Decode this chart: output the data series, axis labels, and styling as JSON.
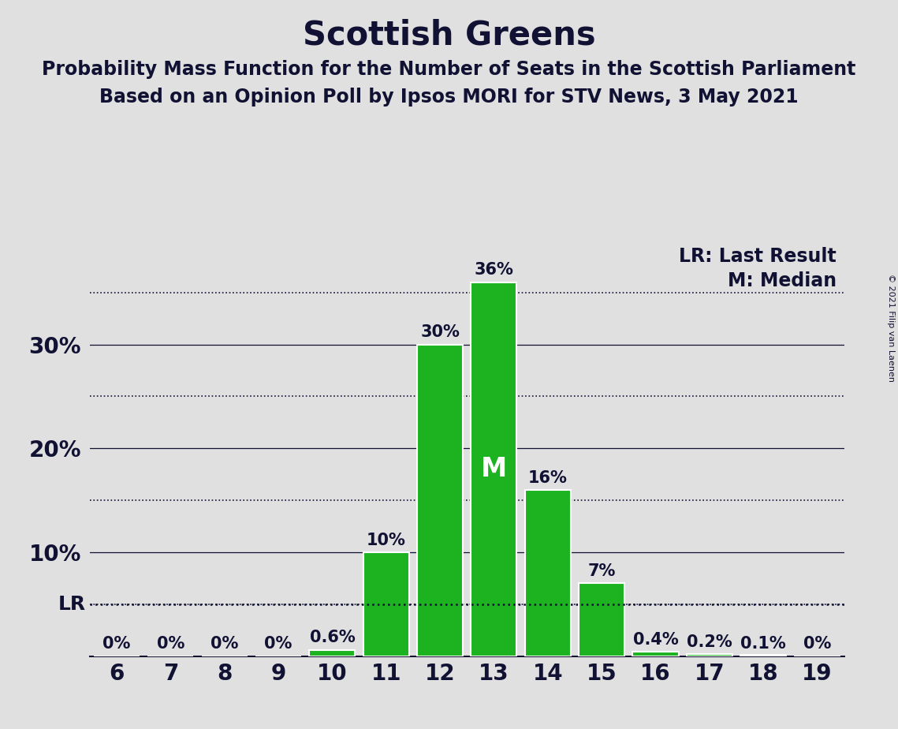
{
  "title": "Scottish Greens",
  "subtitle1": "Probability Mass Function for the Number of Seats in the Scottish Parliament",
  "subtitle2": "Based on an Opinion Poll by Ipsos MORI for STV News, 3 May 2021",
  "copyright": "© 2021 Filip van Laenen",
  "categories": [
    6,
    7,
    8,
    9,
    10,
    11,
    12,
    13,
    14,
    15,
    16,
    17,
    18,
    19
  ],
  "values": [
    0.0,
    0.0,
    0.0,
    0.0,
    0.006,
    0.1,
    0.3,
    0.36,
    0.16,
    0.07,
    0.004,
    0.002,
    0.001,
    0.0
  ],
  "labels": [
    "0%",
    "0%",
    "0%",
    "0%",
    "0.6%",
    "10%",
    "30%",
    "36%",
    "16%",
    "7%",
    "0.4%",
    "0.2%",
    "0.1%",
    "0%"
  ],
  "bar_color": "#1db320",
  "bar_edgecolor": "white",
  "background_color": "#e0e0e0",
  "lr_value": 0.05,
  "lr_label": "LR",
  "lr_line_note": "LR: Last Result",
  "median_value": 13,
  "median_label": "M",
  "median_line_note": "M: Median",
  "ylim": [
    0,
    0.4
  ],
  "xlim": [
    5.5,
    19.5
  ],
  "title_fontsize": 30,
  "subtitle_fontsize": 17,
  "tick_fontsize": 20,
  "note_fontsize": 17,
  "bar_label_fontsize": 15,
  "median_fontsize": 24,
  "lr_fontsize": 18
}
